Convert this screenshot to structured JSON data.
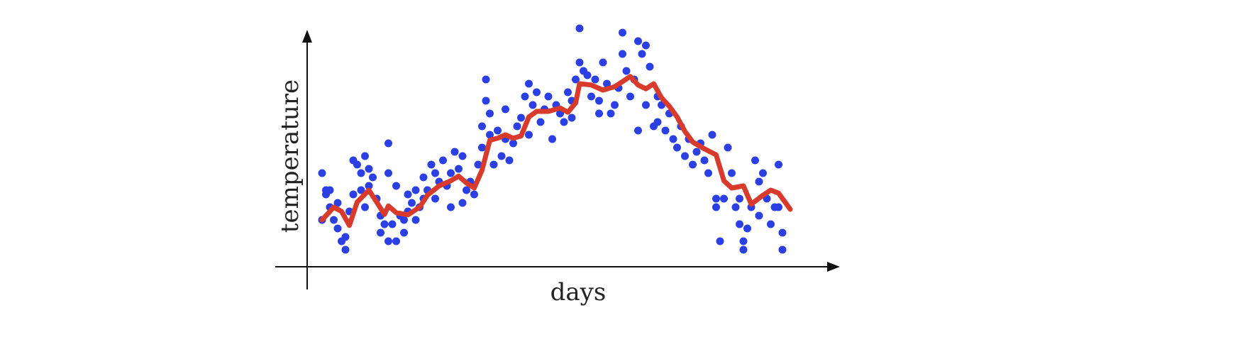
{
  "chart_data": {
    "type": "scatter",
    "x_label": "days",
    "y_label": "temperature",
    "xlim": [
      -8,
      134
    ],
    "ylim": [
      0,
      56
    ],
    "series": [
      {
        "type": "scatter",
        "color": "#2b3fe3",
        "x": [
          4,
          4,
          5,
          5,
          6,
          6,
          7,
          8,
          8,
          9,
          10,
          10,
          11,
          12,
          12,
          13,
          14,
          14,
          15,
          15,
          16,
          16,
          17,
          18,
          19,
          19,
          20,
          21,
          21,
          21,
          22,
          23,
          23,
          24,
          25,
          25,
          26,
          26,
          27,
          28,
          28,
          29,
          30,
          30,
          31,
          32,
          33,
          33,
          34,
          35,
          36,
          37,
          37,
          38,
          39,
          40,
          40,
          41,
          42,
          43,
          44,
          45,
          45,
          46,
          46,
          47,
          47,
          48,
          49,
          50,
          51,
          51,
          52,
          53,
          54,
          55,
          56,
          57,
          57,
          58,
          59,
          60,
          61,
          62,
          63,
          64,
          65,
          66,
          67,
          68,
          68,
          69,
          70,
          70,
          71,
          72,
          73,
          74,
          75,
          75,
          76,
          77,
          78,
          79,
          80,
          81,
          81,
          82,
          83,
          84,
          85,
          85,
          86,
          87,
          87,
          88,
          89,
          90,
          90,
          91,
          92,
          93,
          94,
          95,
          96,
          97,
          98,
          99,
          100,
          101,
          102,
          103,
          104,
          105,
          105,
          106,
          107,
          108,
          109,
          110,
          111,
          111,
          112,
          112,
          113,
          114,
          115,
          116,
          116,
          117,
          118,
          119,
          120,
          121,
          121,
          122,
          122
        ],
        "values": [
          11,
          22,
          17,
          18,
          14,
          18,
          11,
          15,
          9,
          6,
          4,
          7,
          13,
          17,
          25,
          24,
          22,
          18,
          26,
          14,
          23,
          19,
          21,
          16,
          8,
          12,
          10,
          6,
          29,
          22,
          10,
          6,
          19,
          12,
          11,
          8,
          13,
          17,
          15,
          18,
          11,
          14,
          16,
          21,
          18,
          24,
          22,
          16,
          20,
          25,
          19,
          22,
          14,
          27,
          23,
          26,
          15,
          18,
          20,
          17,
          24,
          28,
          33,
          44,
          39,
          36,
          31,
          24,
          32,
          26,
          37,
          30,
          25,
          29,
          33,
          35,
          40,
          43,
          31,
          38,
          41,
          34,
          37,
          40,
          30,
          38,
          36,
          34,
          41,
          39,
          35,
          44,
          48,
          56,
          46,
          45,
          40,
          44,
          39,
          36,
          48,
          43,
          36,
          38,
          42,
          55,
          50,
          46,
          40,
          44,
          32,
          53,
          50,
          52,
          38,
          47,
          33,
          40,
          34,
          38,
          32,
          36,
          30,
          28,
          33,
          26,
          30,
          24,
          27,
          29,
          25,
          22,
          31,
          14,
          16,
          6,
          16,
          28,
          22,
          14,
          16,
          10,
          4,
          6,
          9,
          14,
          25,
          20,
          12,
          22,
          16,
          10,
          14,
          24,
          14,
          8,
          4
        ]
      },
      {
        "type": "line",
        "color": "#d83a2b",
        "x": [
          4,
          7,
          9,
          11,
          13,
          16,
          18,
          20,
          21,
          23,
          26,
          29,
          31,
          34,
          37,
          39,
          41,
          43,
          45,
          47,
          49,
          51,
          53,
          55,
          57,
          59,
          62,
          65,
          67,
          69,
          70,
          73,
          76,
          79,
          81,
          83,
          85,
          87,
          89,
          91,
          93,
          95,
          97,
          99,
          102,
          105,
          107,
          109,
          112,
          114,
          117,
          119,
          121,
          124
        ],
        "values": [
          11,
          14,
          13,
          9.7,
          15.2,
          18,
          15.2,
          12.3,
          14.3,
          12.7,
          12.2,
          14,
          16.8,
          19,
          20.2,
          21.3,
          19.7,
          18.5,
          22.7,
          29.7,
          30.2,
          31,
          30.2,
          30.7,
          35.2,
          36.5,
          36.5,
          37.3,
          36.3,
          38.5,
          43,
          42.7,
          41.5,
          42.3,
          43.5,
          44.7,
          42.7,
          41.8,
          43,
          39.7,
          37.7,
          35.2,
          31.8,
          29.3,
          27.7,
          26.3,
          20.2,
          18.5,
          19,
          14.7,
          16.8,
          18,
          17.3,
          13.5
        ]
      }
    ]
  }
}
